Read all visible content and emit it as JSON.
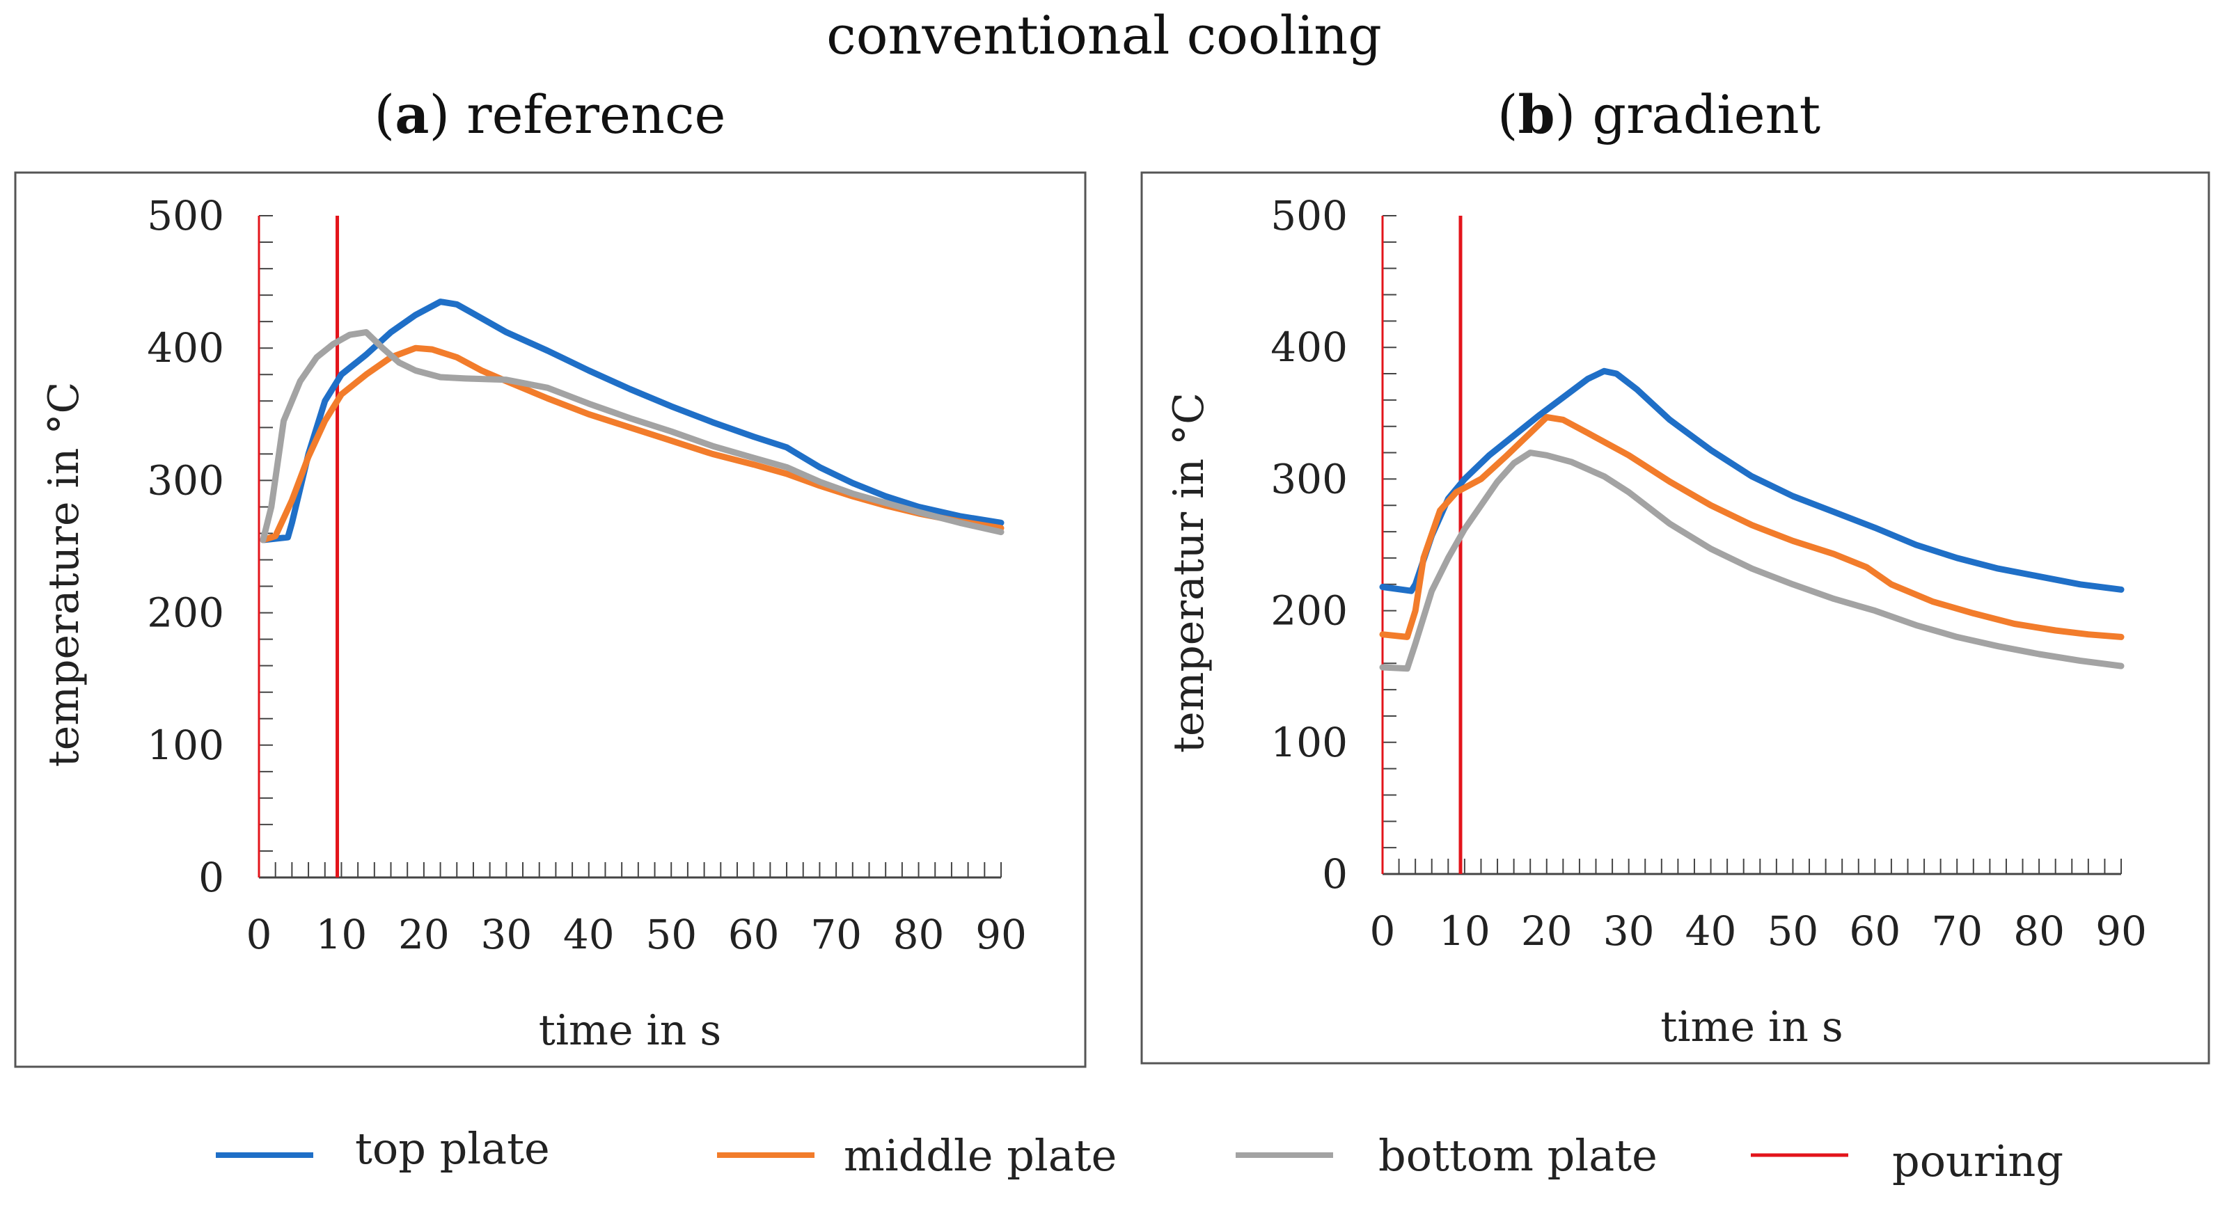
{
  "figure_title": "conventional cooling",
  "legend": [
    {
      "label": "top plate",
      "color": "#1f6fc7"
    },
    {
      "label": "middle plate",
      "color": "#f27c2b"
    },
    {
      "label": "bottom plate",
      "color": "#a3a3a3"
    },
    {
      "label": "pouring",
      "color": "#e3141b"
    }
  ],
  "chart_data": [
    {
      "type": "line",
      "title_prefix": "(",
      "title_letter": "a",
      "title_rest": ") reference",
      "xlabel": "time in s",
      "ylabel": "temperature in °C",
      "xlim": [
        0,
        90
      ],
      "ylim": [
        0,
        500
      ],
      "xticks": [
        "0",
        "10",
        "20",
        "30",
        "40",
        "50",
        "60",
        "70",
        "80",
        "90"
      ],
      "yticks": [
        "0",
        "100",
        "200",
        "300",
        "400",
        "500"
      ],
      "pouring_lines": [
        0,
        9.5
      ],
      "series": [
        {
          "name": "top plate",
          "color": "#1f6fc7",
          "points": [
            [
              0.5,
              255
            ],
            [
              3.5,
              257
            ],
            [
              4,
              268
            ],
            [
              6,
              320
            ],
            [
              8,
              360
            ],
            [
              10,
              380
            ],
            [
              13,
              395
            ],
            [
              16,
              412
            ],
            [
              19,
              425
            ],
            [
              22,
              435
            ],
            [
              24,
              433
            ],
            [
              26,
              426
            ],
            [
              30,
              412
            ],
            [
              35,
              398
            ],
            [
              40,
              383
            ],
            [
              45,
              369
            ],
            [
              50,
              356
            ],
            [
              55,
              344
            ],
            [
              60,
              333
            ],
            [
              64,
              325
            ],
            [
              68,
              310
            ],
            [
              72,
              298
            ],
            [
              76,
              288
            ],
            [
              80,
              280
            ],
            [
              85,
              273
            ],
            [
              90,
              268
            ]
          ]
        },
        {
          "name": "middle plate",
          "color": "#f27c2b",
          "points": [
            [
              0.5,
              255
            ],
            [
              2,
              258
            ],
            [
              4,
              285
            ],
            [
              6,
              318
            ],
            [
              8,
              345
            ],
            [
              10,
              365
            ],
            [
              13,
              380
            ],
            [
              16,
              393
            ],
            [
              19,
              400
            ],
            [
              21,
              399
            ],
            [
              24,
              393
            ],
            [
              27,
              383
            ],
            [
              30,
              375
            ],
            [
              35,
              362
            ],
            [
              40,
              350
            ],
            [
              45,
              340
            ],
            [
              50,
              330
            ],
            [
              55,
              320
            ],
            [
              60,
              312
            ],
            [
              64,
              305
            ],
            [
              68,
              296
            ],
            [
              72,
              288
            ],
            [
              76,
              281
            ],
            [
              80,
              275
            ],
            [
              85,
              269
            ],
            [
              90,
              264
            ]
          ]
        },
        {
          "name": "bottom plate",
          "color": "#a3a3a3",
          "points": [
            [
              0.5,
              255
            ],
            [
              1.5,
              280
            ],
            [
              3,
              345
            ],
            [
              5,
              375
            ],
            [
              7,
              393
            ],
            [
              9,
              403
            ],
            [
              11,
              410
            ],
            [
              13,
              412
            ],
            [
              15,
              400
            ],
            [
              17,
              389
            ],
            [
              19,
              383
            ],
            [
              22,
              378
            ],
            [
              25,
              377
            ],
            [
              30,
              376
            ],
            [
              35,
              370
            ],
            [
              40,
              358
            ],
            [
              45,
              347
            ],
            [
              50,
              337
            ],
            [
              55,
              326
            ],
            [
              60,
              317
            ],
            [
              64,
              310
            ],
            [
              68,
              299
            ],
            [
              72,
              290
            ],
            [
              76,
              283
            ],
            [
              80,
              276
            ],
            [
              85,
              268
            ],
            [
              90,
              261
            ]
          ]
        }
      ]
    },
    {
      "type": "line",
      "title_prefix": "(",
      "title_letter": "b",
      "title_rest": ") gradient",
      "xlabel": "time in s",
      "ylabel": "temperatur in °C",
      "xlim": [
        0,
        90
      ],
      "ylim": [
        0,
        500
      ],
      "xticks": [
        "0",
        "10",
        "20",
        "30",
        "40",
        "50",
        "60",
        "70",
        "80",
        "90"
      ],
      "yticks": [
        "0",
        "100",
        "200",
        "300",
        "400",
        "500"
      ],
      "pouring_lines": [
        0,
        9.5
      ],
      "series": [
        {
          "name": "top plate",
          "color": "#1f6fc7",
          "points": [
            [
              0,
              218
            ],
            [
              3.5,
              215
            ],
            [
              4,
              220
            ],
            [
              6,
              257
            ],
            [
              8,
              285
            ],
            [
              10,
              300
            ],
            [
              13,
              318
            ],
            [
              16,
              333
            ],
            [
              19,
              348
            ],
            [
              22,
              362
            ],
            [
              25,
              376
            ],
            [
              27,
              382
            ],
            [
              28.5,
              380
            ],
            [
              31,
              368
            ],
            [
              35,
              345
            ],
            [
              40,
              322
            ],
            [
              45,
              302
            ],
            [
              50,
              287
            ],
            [
              55,
              275
            ],
            [
              60,
              263
            ],
            [
              65,
              250
            ],
            [
              70,
              240
            ],
            [
              75,
              232
            ],
            [
              80,
              226
            ],
            [
              85,
              220
            ],
            [
              90,
              216
            ]
          ]
        },
        {
          "name": "middle plate",
          "color": "#f27c2b",
          "points": [
            [
              0,
              182
            ],
            [
              3,
              180
            ],
            [
              4,
              200
            ],
            [
              5,
              240
            ],
            [
              7,
              276
            ],
            [
              9,
              290
            ],
            [
              12,
              300
            ],
            [
              15,
              317
            ],
            [
              18,
              335
            ],
            [
              20,
              347
            ],
            [
              22,
              345
            ],
            [
              25,
              335
            ],
            [
              30,
              318
            ],
            [
              35,
              298
            ],
            [
              40,
              280
            ],
            [
              45,
              265
            ],
            [
              50,
              253
            ],
            [
              55,
              243
            ],
            [
              59,
              233
            ],
            [
              62,
              220
            ],
            [
              67,
              207
            ],
            [
              72,
              198
            ],
            [
              77,
              190
            ],
            [
              82,
              185
            ],
            [
              86,
              182
            ],
            [
              90,
              180
            ]
          ]
        },
        {
          "name": "bottom plate",
          "color": "#a3a3a3",
          "points": [
            [
              0,
              157
            ],
            [
              3,
              156
            ],
            [
              4,
              175
            ],
            [
              6,
              215
            ],
            [
              8,
              240
            ],
            [
              10,
              262
            ],
            [
              12,
              280
            ],
            [
              14,
              298
            ],
            [
              16,
              312
            ],
            [
              18,
              320
            ],
            [
              20,
              318
            ],
            [
              23,
              313
            ],
            [
              27,
              302
            ],
            [
              30,
              290
            ],
            [
              35,
              266
            ],
            [
              40,
              247
            ],
            [
              45,
              232
            ],
            [
              50,
              220
            ],
            [
              55,
              209
            ],
            [
              60,
              200
            ],
            [
              65,
              189
            ],
            [
              70,
              180
            ],
            [
              75,
              173
            ],
            [
              80,
              167
            ],
            [
              85,
              162
            ],
            [
              90,
              158
            ]
          ]
        }
      ]
    }
  ]
}
